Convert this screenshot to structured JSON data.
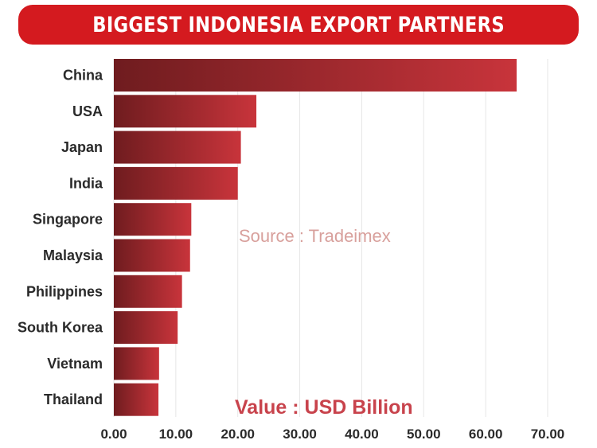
{
  "header": {
    "title": "BIGGEST INDONESIA EXPORT PARTNERS"
  },
  "annotations": {
    "source": "Source : Tradeimex",
    "unit": "Value : USD Billion"
  },
  "colors": {
    "banner": "#d41a1f",
    "bar_dark": "#6f1c1f",
    "bar_light": "#c8343b",
    "grid": "#e6e6e6"
  },
  "chart_data": {
    "type": "bar",
    "orientation": "horizontal",
    "title": "BIGGEST INDONESIA EXPORT PARTNERS",
    "categories": [
      "China",
      "USA",
      "Japan",
      "India",
      "Singapore",
      "Malaysia",
      "Philippines",
      "South Korea",
      "Vietnam",
      "Thailand"
    ],
    "values": [
      65.0,
      23.0,
      20.5,
      20.0,
      12.5,
      12.3,
      11.0,
      10.3,
      7.3,
      7.2
    ],
    "xlim": [
      0,
      70
    ],
    "xticks": [
      0,
      10,
      20,
      30,
      40,
      50,
      60,
      70
    ],
    "tick_labels": [
      "0.00",
      "10.00",
      "20.00",
      "30.00",
      "40.00",
      "50.00",
      "60.00",
      "70.00"
    ],
    "unit": "Value : USD Billion",
    "grid": true
  }
}
